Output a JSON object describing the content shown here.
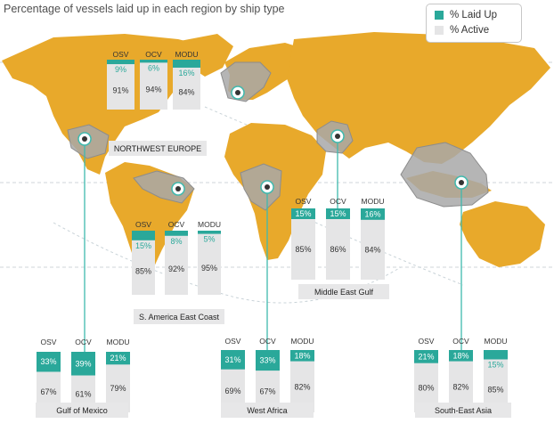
{
  "title": "Percentage of vessels laid up in each region by ship type",
  "legend": {
    "laid_up": "% Laid Up",
    "active": "% Active"
  },
  "colors": {
    "laid_up": "#2aa89a",
    "active": "#e5e5e6",
    "land": "#e8a92b",
    "region": "#a8a8a8",
    "line": "#3fb9ae"
  },
  "chart_data": [
    {
      "type": "bar",
      "region": "NORTHWEST EUROPE",
      "categories": [
        "OSV",
        "OCV",
        "MODU"
      ],
      "series": [
        {
          "name": "% Laid Up",
          "values": [
            9,
            6,
            16
          ]
        },
        {
          "name": "% Active",
          "values": [
            91,
            94,
            84
          ]
        }
      ],
      "labels": {
        "laid_up": [
          "9%",
          "6%",
          "16%"
        ],
        "active": [
          "91%",
          "94%",
          "84%"
        ]
      }
    },
    {
      "type": "bar",
      "region": "S. America East Coast",
      "categories": [
        "OSV",
        "OCV",
        "MODU"
      ],
      "series": [
        {
          "name": "% Laid Up",
          "values": [
            15,
            8,
            5
          ]
        },
        {
          "name": "% Active",
          "values": [
            85,
            92,
            95
          ]
        }
      ],
      "labels": {
        "laid_up": [
          "15%",
          "8%",
          "5%"
        ],
        "active": [
          "85%",
          "92%",
          "95%"
        ]
      }
    },
    {
      "type": "bar",
      "region": "Middle East Gulf",
      "categories": [
        "OSV",
        "OCV",
        "MODU"
      ],
      "series": [
        {
          "name": "% Laid Up",
          "values": [
            15,
            15,
            16
          ]
        },
        {
          "name": "% Active",
          "values": [
            85,
            86,
            84
          ]
        }
      ],
      "labels": {
        "laid_up": [
          "15%",
          "15%",
          "16%"
        ],
        "active": [
          "85%",
          "86%",
          "84%"
        ]
      }
    },
    {
      "type": "bar",
      "region": "Gulf of Mexico",
      "categories": [
        "OSV",
        "OCV",
        "MODU"
      ],
      "series": [
        {
          "name": "% Laid Up",
          "values": [
            33,
            39,
            21
          ]
        },
        {
          "name": "% Active",
          "values": [
            67,
            61,
            79
          ]
        }
      ],
      "labels": {
        "laid_up": [
          "33%",
          "39%",
          "21%"
        ],
        "active": [
          "67%",
          "61%",
          "79%"
        ]
      }
    },
    {
      "type": "bar",
      "region": "West Africa",
      "categories": [
        "OSV",
        "OCV",
        "MODU"
      ],
      "series": [
        {
          "name": "% Laid Up",
          "values": [
            31,
            33,
            18
          ]
        },
        {
          "name": "% Active",
          "values": [
            69,
            67,
            82
          ]
        }
      ],
      "labels": {
        "laid_up": [
          "31%",
          "33%",
          "18%"
        ],
        "active": [
          "69%",
          "67%",
          "82%"
        ]
      }
    },
    {
      "type": "bar",
      "region": "South-East Asia",
      "categories": [
        "OSV",
        "OCV",
        "MODU"
      ],
      "series": [
        {
          "name": "% Laid Up",
          "values": [
            21,
            18,
            15
          ]
        },
        {
          "name": "% Active",
          "values": [
            80,
            82,
            85
          ]
        }
      ],
      "labels": {
        "laid_up": [
          "21%",
          "18%",
          "15%"
        ],
        "active": [
          "80%",
          "82%",
          "85%"
        ]
      }
    }
  ]
}
